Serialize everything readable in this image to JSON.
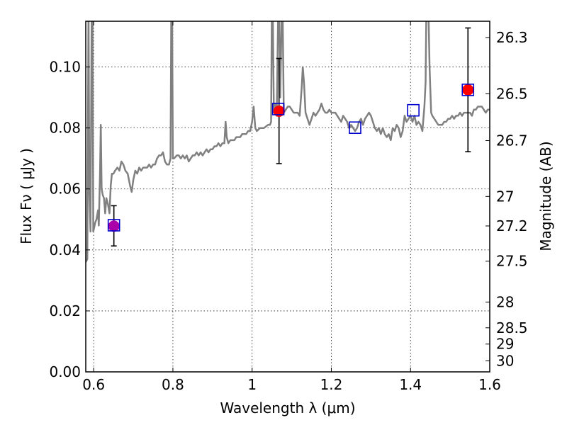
{
  "chart_data": {
    "type": "scatter",
    "title": "",
    "xlabel": "Wavelength  λ (μm)",
    "ylabel": "Flux  Fν  ( μJy )",
    "y2label": "Magnitude (AB)",
    "xlim": [
      0.58,
      1.6
    ],
    "ylim": [
      0.0,
      0.115
    ],
    "x_ticks": [
      {
        "value": 0.6,
        "label": "0.6"
      },
      {
        "value": 0.8,
        "label": "0.8"
      },
      {
        "value": 1.0,
        "label": "1"
      },
      {
        "value": 1.2,
        "label": "1.2"
      },
      {
        "value": 1.4,
        "label": "1.4"
      },
      {
        "value": 1.6,
        "label": "1.6"
      }
    ],
    "y_ticks": [
      {
        "value": 0.0,
        "label": "0.00"
      },
      {
        "value": 0.02,
        "label": "0.02"
      },
      {
        "value": 0.04,
        "label": "0.04"
      },
      {
        "value": 0.06,
        "label": "0.06"
      },
      {
        "value": 0.08,
        "label": "0.08"
      },
      {
        "value": 0.1,
        "label": "0.10"
      }
    ],
    "mag_ticks": [
      {
        "value": 26.3,
        "label": "26.3"
      },
      {
        "value": 26.5,
        "label": "26.5"
      },
      {
        "value": 26.7,
        "label": "26.7"
      },
      {
        "value": 27.0,
        "label": "27"
      },
      {
        "value": 27.2,
        "label": "27.2"
      },
      {
        "value": 27.5,
        "label": "27.5"
      },
      {
        "value": 28.0,
        "label": "28"
      },
      {
        "value": 28.5,
        "label": "28.5"
      },
      {
        "value": 29.0,
        "label": "29"
      },
      {
        "value": 30.0,
        "label": "30"
      }
    ],
    "grid": true,
    "colors": {
      "spectrum": "#808080",
      "observed": "#ff0000",
      "observed_first": "#aa00aa",
      "model_box": "#0000cc",
      "error_bar": "#000000"
    },
    "spectrum": [
      [
        0.58,
        0.036
      ],
      [
        0.584,
        0.037
      ],
      [
        0.586,
        0.095
      ],
      [
        0.587,
        0.12
      ],
      [
        0.589,
        0.06
      ],
      [
        0.592,
        0.046
      ],
      [
        0.595,
        0.12
      ],
      [
        0.597,
        0.12
      ],
      [
        0.599,
        0.046
      ],
      [
        0.604,
        0.049
      ],
      [
        0.607,
        0.05
      ],
      [
        0.611,
        0.053
      ],
      [
        0.613,
        0.048
      ],
      [
        0.616,
        0.065
      ],
      [
        0.618,
        0.081
      ],
      [
        0.62,
        0.06
      ],
      [
        0.623,
        0.058
      ],
      [
        0.626,
        0.057
      ],
      [
        0.629,
        0.052
      ],
      [
        0.632,
        0.057
      ],
      [
        0.636,
        0.055
      ],
      [
        0.64,
        0.052
      ],
      [
        0.643,
        0.061
      ],
      [
        0.646,
        0.065
      ],
      [
        0.65,
        0.065
      ],
      [
        0.654,
        0.066
      ],
      [
        0.66,
        0.067
      ],
      [
        0.665,
        0.066
      ],
      [
        0.67,
        0.069
      ],
      [
        0.675,
        0.068
      ],
      [
        0.68,
        0.066
      ],
      [
        0.686,
        0.065
      ],
      [
        0.692,
        0.061
      ],
      [
        0.696,
        0.059
      ],
      [
        0.7,
        0.063
      ],
      [
        0.705,
        0.066
      ],
      [
        0.71,
        0.065
      ],
      [
        0.715,
        0.067
      ],
      [
        0.72,
        0.066
      ],
      [
        0.725,
        0.067
      ],
      [
        0.73,
        0.067
      ],
      [
        0.735,
        0.067
      ],
      [
        0.74,
        0.068
      ],
      [
        0.745,
        0.067
      ],
      [
        0.75,
        0.068
      ],
      [
        0.755,
        0.068
      ],
      [
        0.76,
        0.07
      ],
      [
        0.765,
        0.071
      ],
      [
        0.77,
        0.071
      ],
      [
        0.775,
        0.072
      ],
      [
        0.78,
        0.069
      ],
      [
        0.785,
        0.068
      ],
      [
        0.79,
        0.068
      ],
      [
        0.794,
        0.07
      ],
      [
        0.796,
        0.12
      ],
      [
        0.798,
        0.12
      ],
      [
        0.8,
        0.07
      ],
      [
        0.803,
        0.07
      ],
      [
        0.81,
        0.071
      ],
      [
        0.815,
        0.071
      ],
      [
        0.82,
        0.07
      ],
      [
        0.825,
        0.071
      ],
      [
        0.83,
        0.07
      ],
      [
        0.835,
        0.071
      ],
      [
        0.84,
        0.069
      ],
      [
        0.845,
        0.07
      ],
      [
        0.85,
        0.071
      ],
      [
        0.855,
        0.071
      ],
      [
        0.86,
        0.072
      ],
      [
        0.865,
        0.071
      ],
      [
        0.87,
        0.072
      ],
      [
        0.875,
        0.071
      ],
      [
        0.88,
        0.072
      ],
      [
        0.885,
        0.073
      ],
      [
        0.89,
        0.072
      ],
      [
        0.895,
        0.073
      ],
      [
        0.9,
        0.073
      ],
      [
        0.905,
        0.074
      ],
      [
        0.91,
        0.074
      ],
      [
        0.915,
        0.075
      ],
      [
        0.92,
        0.074
      ],
      [
        0.925,
        0.075
      ],
      [
        0.93,
        0.075
      ],
      [
        0.933,
        0.082
      ],
      [
        0.936,
        0.077
      ],
      [
        0.94,
        0.075
      ],
      [
        0.945,
        0.076
      ],
      [
        0.95,
        0.076
      ],
      [
        0.955,
        0.076
      ],
      [
        0.96,
        0.077
      ],
      [
        0.965,
        0.077
      ],
      [
        0.97,
        0.077
      ],
      [
        0.975,
        0.078
      ],
      [
        0.98,
        0.078
      ],
      [
        0.985,
        0.078
      ],
      [
        0.99,
        0.079
      ],
      [
        0.995,
        0.079
      ],
      [
        1.0,
        0.082
      ],
      [
        1.004,
        0.087
      ],
      [
        1.008,
        0.08
      ],
      [
        1.012,
        0.079
      ],
      [
        1.02,
        0.08
      ],
      [
        1.03,
        0.08
      ],
      [
        1.04,
        0.081
      ],
      [
        1.045,
        0.081
      ],
      [
        1.048,
        0.082
      ],
      [
        1.05,
        0.12
      ],
      [
        1.052,
        0.12
      ],
      [
        1.055,
        0.085
      ],
      [
        1.058,
        0.088
      ],
      [
        1.062,
        0.084
      ],
      [
        1.066,
        0.12
      ],
      [
        1.068,
        0.12
      ],
      [
        1.071,
        0.09
      ],
      [
        1.075,
        0.12
      ],
      [
        1.077,
        0.12
      ],
      [
        1.08,
        0.085
      ],
      [
        1.085,
        0.086
      ],
      [
        1.09,
        0.087
      ],
      [
        1.095,
        0.087
      ],
      [
        1.1,
        0.086
      ],
      [
        1.105,
        0.085
      ],
      [
        1.11,
        0.085
      ],
      [
        1.115,
        0.085
      ],
      [
        1.12,
        0.084
      ],
      [
        1.125,
        0.093
      ],
      [
        1.128,
        0.1
      ],
      [
        1.131,
        0.095
      ],
      [
        1.135,
        0.085
      ],
      [
        1.14,
        0.083
      ],
      [
        1.145,
        0.081
      ],
      [
        1.15,
        0.083
      ],
      [
        1.155,
        0.085
      ],
      [
        1.16,
        0.084
      ],
      [
        1.165,
        0.085
      ],
      [
        1.17,
        0.086
      ],
      [
        1.175,
        0.088
      ],
      [
        1.18,
        0.086
      ],
      [
        1.185,
        0.085
      ],
      [
        1.19,
        0.085
      ],
      [
        1.195,
        0.086
      ],
      [
        1.2,
        0.085
      ],
      [
        1.205,
        0.085
      ],
      [
        1.21,
        0.085
      ],
      [
        1.215,
        0.084
      ],
      [
        1.22,
        0.083
      ],
      [
        1.225,
        0.082
      ],
      [
        1.23,
        0.084
      ],
      [
        1.235,
        0.083
      ],
      [
        1.24,
        0.082
      ],
      [
        1.245,
        0.08
      ],
      [
        1.25,
        0.081
      ],
      [
        1.255,
        0.08
      ],
      [
        1.26,
        0.079
      ],
      [
        1.265,
        0.08
      ],
      [
        1.27,
        0.082
      ],
      [
        1.275,
        0.083
      ],
      [
        1.28,
        0.081
      ],
      [
        1.285,
        0.083
      ],
      [
        1.29,
        0.084
      ],
      [
        1.295,
        0.085
      ],
      [
        1.3,
        0.084
      ],
      [
        1.305,
        0.082
      ],
      [
        1.31,
        0.08
      ],
      [
        1.315,
        0.079
      ],
      [
        1.32,
        0.08
      ],
      [
        1.325,
        0.078
      ],
      [
        1.33,
        0.08
      ],
      [
        1.335,
        0.078
      ],
      [
        1.34,
        0.077
      ],
      [
        1.345,
        0.078
      ],
      [
        1.35,
        0.076
      ],
      [
        1.355,
        0.08
      ],
      [
        1.36,
        0.079
      ],
      [
        1.365,
        0.081
      ],
      [
        1.37,
        0.08
      ],
      [
        1.375,
        0.077
      ],
      [
        1.38,
        0.079
      ],
      [
        1.385,
        0.084
      ],
      [
        1.39,
        0.082
      ],
      [
        1.395,
        0.083
      ],
      [
        1.4,
        0.084
      ],
      [
        1.405,
        0.082
      ],
      [
        1.41,
        0.084
      ],
      [
        1.415,
        0.081
      ],
      [
        1.42,
        0.082
      ],
      [
        1.425,
        0.081
      ],
      [
        1.43,
        0.079
      ],
      [
        1.435,
        0.087
      ],
      [
        1.438,
        0.095
      ],
      [
        1.44,
        0.12
      ],
      [
        1.445,
        0.12
      ],
      [
        1.448,
        0.1
      ],
      [
        1.452,
        0.085
      ],
      [
        1.455,
        0.084
      ],
      [
        1.46,
        0.083
      ],
      [
        1.465,
        0.082
      ],
      [
        1.47,
        0.081
      ],
      [
        1.475,
        0.081
      ],
      [
        1.48,
        0.081
      ],
      [
        1.485,
        0.082
      ],
      [
        1.49,
        0.082
      ],
      [
        1.495,
        0.083
      ],
      [
        1.5,
        0.083
      ],
      [
        1.505,
        0.084
      ],
      [
        1.51,
        0.083
      ],
      [
        1.515,
        0.084
      ],
      [
        1.52,
        0.084
      ],
      [
        1.525,
        0.085
      ],
      [
        1.53,
        0.084
      ],
      [
        1.535,
        0.085
      ],
      [
        1.54,
        0.085
      ],
      [
        1.545,
        0.085
      ],
      [
        1.55,
        0.085
      ],
      [
        1.555,
        0.084
      ],
      [
        1.56,
        0.086
      ],
      [
        1.565,
        0.086
      ],
      [
        1.57,
        0.087
      ],
      [
        1.575,
        0.087
      ],
      [
        1.58,
        0.087
      ],
      [
        1.585,
        0.086
      ],
      [
        1.59,
        0.085
      ],
      [
        1.595,
        0.086
      ],
      [
        1.6,
        0.086
      ]
    ],
    "observed": [
      {
        "x": 0.651,
        "y": 0.0478,
        "err_low": 0.0413,
        "err_high": 0.0545
      },
      {
        "x": 1.068,
        "y": 0.0855,
        "err_low": 0.0683,
        "err_high": 0.1028
      },
      {
        "x": 1.545,
        "y": 0.0925,
        "err_low": 0.0722,
        "err_high": 0.1128
      }
    ],
    "model": [
      {
        "x": 0.651,
        "y": 0.0481
      },
      {
        "x": 1.066,
        "y": 0.0862
      },
      {
        "x": 1.26,
        "y": 0.0801
      },
      {
        "x": 1.407,
        "y": 0.0858
      },
      {
        "x": 1.545,
        "y": 0.0925
      }
    ]
  }
}
